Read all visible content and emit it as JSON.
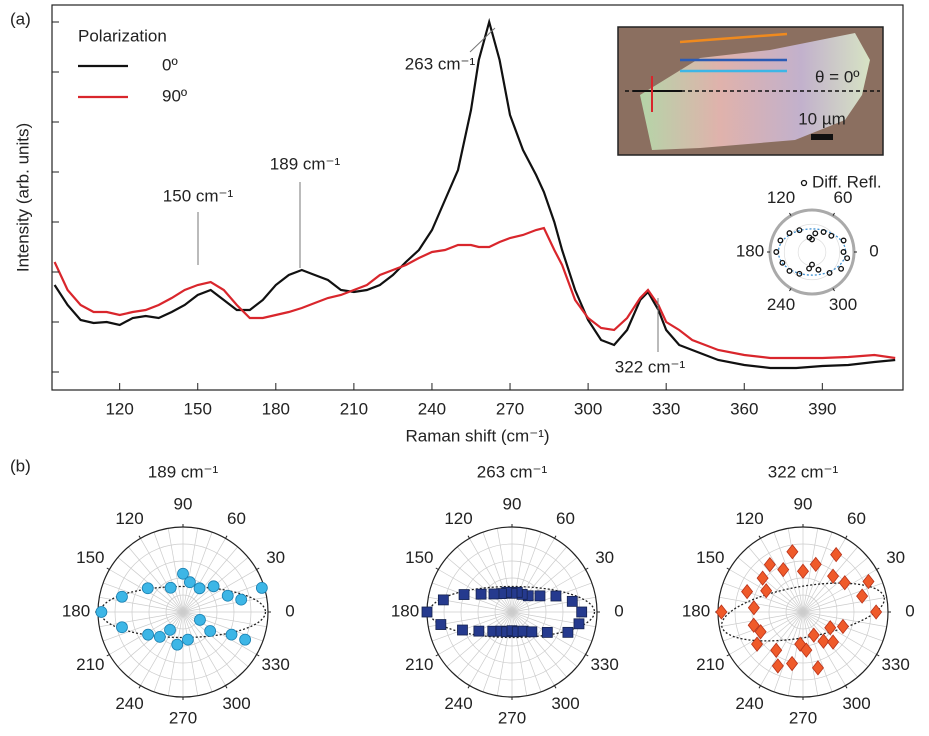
{
  "chart_data": [
    {
      "type": "line",
      "panel_label": "(a)",
      "x_label": "Raman shift (cm⁻¹)",
      "y_label": "Intensity (arb. units)",
      "xlim": [
        94,
        421
      ],
      "ylim": [
        -0.36,
        7.34
      ],
      "xticks": [
        120,
        150,
        180,
        210,
        240,
        270,
        300,
        330,
        360,
        390
      ],
      "yticks": [
        0,
        1,
        2,
        3,
        4,
        5,
        6,
        7
      ],
      "legend_title": "Polarization",
      "x": [
        95,
        100,
        105,
        110,
        115,
        120,
        125,
        130,
        135,
        140,
        145,
        150,
        155,
        160,
        165,
        170,
        175,
        180,
        185,
        190,
        195,
        200,
        205,
        210,
        215,
        220,
        225,
        230,
        235,
        240,
        245,
        250,
        255,
        258,
        262,
        266,
        270,
        275,
        280,
        283,
        287,
        290,
        295,
        300,
        305,
        310,
        315,
        320,
        323,
        327,
        330,
        335,
        340,
        345,
        350,
        360,
        370,
        380,
        390,
        400,
        410,
        418
      ],
      "series": [
        {
          "name": "0º",
          "color": "#111111",
          "values": [
            1.74,
            1.34,
            1.04,
            0.98,
            1.0,
            0.94,
            1.08,
            1.12,
            1.08,
            1.2,
            1.34,
            1.54,
            1.64,
            1.44,
            1.24,
            1.24,
            1.44,
            1.74,
            1.94,
            2.04,
            1.94,
            1.84,
            1.64,
            1.6,
            1.64,
            1.74,
            1.94,
            2.2,
            2.44,
            2.84,
            3.44,
            4.04,
            5.24,
            6.24,
            7.0,
            6.24,
            5.14,
            4.44,
            3.94,
            3.6,
            3.0,
            2.44,
            1.64,
            1.04,
            0.64,
            0.54,
            0.84,
            1.44,
            1.6,
            1.24,
            0.84,
            0.54,
            0.44,
            0.34,
            0.24,
            0.14,
            0.08,
            0.08,
            0.12,
            0.14,
            0.2,
            0.24
          ]
        },
        {
          "name": "90º",
          "color": "#d9262c",
          "values": [
            2.2,
            1.64,
            1.34,
            1.2,
            1.2,
            1.14,
            1.2,
            1.24,
            1.34,
            1.48,
            1.64,
            1.74,
            1.8,
            1.64,
            1.34,
            1.08,
            1.08,
            1.14,
            1.2,
            1.28,
            1.38,
            1.48,
            1.54,
            1.64,
            1.74,
            1.94,
            2.04,
            2.14,
            2.28,
            2.4,
            2.44,
            2.54,
            2.54,
            2.5,
            2.5,
            2.6,
            2.68,
            2.74,
            2.84,
            2.88,
            2.44,
            2.14,
            1.44,
            1.08,
            0.88,
            0.84,
            1.08,
            1.48,
            1.64,
            1.34,
            1.0,
            0.84,
            0.64,
            0.54,
            0.44,
            0.34,
            0.28,
            0.28,
            0.28,
            0.3,
            0.34,
            0.28
          ]
        }
      ],
      "annotations": [
        "263 cm⁻¹",
        "189 cm⁻¹",
        "150 cm⁻¹",
        "322 cm⁻¹"
      ],
      "inset": {
        "angle_label": "θ = 0º",
        "scale_label": "10 µm"
      }
    },
    {
      "type": "polar",
      "name": "Diff. Refl.",
      "marker": "open-circle",
      "color": "#111111",
      "rlim": [
        0,
        1
      ],
      "thetaticks": [
        0,
        60,
        120,
        180,
        240,
        300
      ],
      "theta": [
        0,
        20,
        40,
        60,
        80,
        90,
        100,
        120,
        140,
        160,
        180,
        200,
        220,
        240,
        260,
        270,
        290,
        310,
        330,
        350
      ],
      "r": [
        0.75,
        0.8,
        0.6,
        0.55,
        0.45,
        0.3,
        0.35,
        0.6,
        0.7,
        0.8,
        0.85,
        0.75,
        0.7,
        0.6,
        0.4,
        0.3,
        0.45,
        0.65,
        0.8,
        0.85
      ]
    },
    {
      "type": "polar",
      "panel_label": "(b)",
      "title": "189 cm⁻¹",
      "marker": "circle",
      "color": "#3db6e6",
      "rlim": [
        0,
        1
      ],
      "thetaticks": [
        0,
        30,
        60,
        90,
        120,
        150,
        180,
        210,
        240,
        270,
        300,
        330
      ],
      "theta": [
        180,
        166,
        194,
        146,
        117,
        90,
        77,
        55,
        40,
        20,
        12,
        17,
        336,
        335,
        325,
        335,
        280,
        260,
        234,
        227,
        213
      ],
      "r": [
        0.96,
        0.74,
        0.74,
        0.5,
        0.32,
        0.45,
        0.36,
        0.34,
        0.47,
        0.56,
        0.7,
        0.97,
        0.8,
        0.63,
        0.39,
        0.22,
        0.33,
        0.39,
        0.26,
        0.4,
        0.49
      ]
    },
    {
      "type": "polar",
      "title": "263 cm⁻¹",
      "marker": "square",
      "color": "#253a8e",
      "rlim": [
        0,
        1
      ],
      "thetaticks": [
        0,
        30,
        60,
        90,
        120,
        150,
        180,
        210,
        240,
        270,
        300,
        330
      ],
      "theta": [
        0,
        10,
        20,
        30,
        45,
        60,
        75,
        90,
        105,
        120,
        135,
        150,
        160,
        170,
        180,
        190,
        200,
        210,
        225,
        240,
        255,
        270,
        285,
        300,
        315,
        330,
        340,
        350
      ],
      "r": [
        0.82,
        0.72,
        0.55,
        0.38,
        0.27,
        0.24,
        0.24,
        0.22,
        0.24,
        0.25,
        0.3,
        0.42,
        0.6,
        0.82,
        1.0,
        0.85,
        0.62,
        0.45,
        0.32,
        0.26,
        0.24,
        0.22,
        0.24,
        0.26,
        0.33,
        0.48,
        0.7,
        0.8
      ]
    },
    {
      "type": "polar",
      "title": "322 cm⁻¹",
      "marker": "diamond",
      "color": "#ef5a2a",
      "rlim": [
        0,
        1
      ],
      "thetaticks": [
        0,
        30,
        60,
        90,
        120,
        150,
        180,
        210,
        240,
        270,
        300,
        330
      ],
      "theta": [
        0,
        15,
        25,
        35,
        50,
        60,
        75,
        90,
        100,
        115,
        125,
        140,
        150,
        160,
        175,
        180,
        195,
        205,
        215,
        235,
        245,
        258,
        265,
        275,
        285,
        295,
        305,
        315,
        330,
        340
      ],
      "r": [
        0.86,
        0.72,
        0.85,
        0.6,
        0.55,
        0.78,
        0.58,
        0.48,
        0.72,
        0.55,
        0.68,
        0.62,
        0.5,
        0.7,
        0.58,
        0.96,
        0.6,
        0.55,
        0.66,
        0.55,
        0.7,
        0.62,
        0.38,
        0.45,
        0.68,
        0.3,
        0.42,
        0.5,
        0.37,
        0.5
      ]
    }
  ]
}
